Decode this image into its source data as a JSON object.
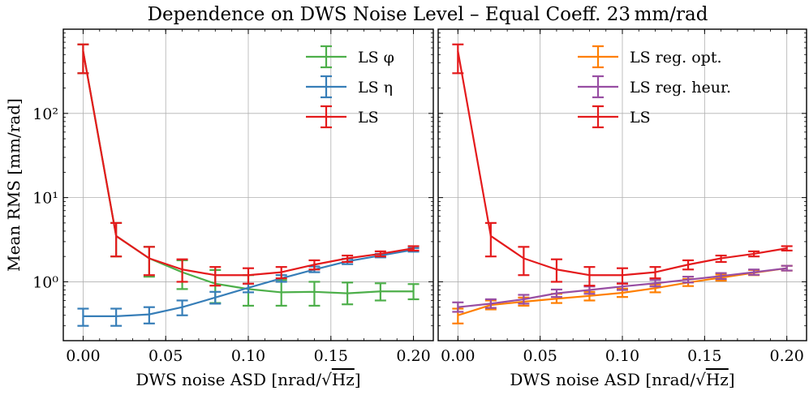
{
  "figure": {
    "title": "Dependence on DWS Noise Level – Equal Coeff. 23 mm/rad"
  },
  "chart_data": [
    {
      "type": "line",
      "ylabel": "Mean RMS [mm/rad]",
      "xlabel_prefix": "DWS noise ASD [nrad/",
      "xlabel_sqrt": "Hz",
      "xlabel_suffix": "]",
      "yscale": "log",
      "xlim": [
        -0.012,
        0.212
      ],
      "ylim": [
        0.2,
        1000
      ],
      "xticks": [
        0.0,
        0.05,
        0.1,
        0.15,
        0.2
      ],
      "xtick_labels": [
        "0.00",
        "0.05",
        "0.10",
        "0.15",
        "0.20"
      ],
      "yticks": [
        1,
        10,
        100
      ],
      "ytick_labels": [
        "10⁰",
        "10¹",
        "10²"
      ],
      "grid": true,
      "legend_position": "top-right",
      "series": [
        {
          "name": "LS φ",
          "color": "#4daf4a",
          "x": [
            0.0,
            0.02,
            0.04,
            0.06,
            0.08,
            0.1,
            0.12,
            0.14,
            0.16,
            0.18,
            0.2
          ],
          "y": [
            550,
            3.5,
            1.9,
            1.3,
            0.95,
            0.82,
            0.75,
            0.76,
            0.73,
            0.77,
            0.77
          ],
          "err_low": [
            300,
            2.0,
            1.15,
            0.82,
            0.56,
            0.52,
            0.52,
            0.52,
            0.54,
            0.6,
            0.62
          ],
          "err_high": [
            660,
            5.0,
            2.6,
            1.8,
            1.38,
            1.2,
            1.05,
            1.0,
            0.98,
            0.96,
            0.94
          ]
        },
        {
          "name": "LS η",
          "color": "#377eb8",
          "x": [
            0.0,
            0.02,
            0.04,
            0.06,
            0.08,
            0.1,
            0.12,
            0.14,
            0.16,
            0.18,
            0.2
          ],
          "y": [
            0.39,
            0.39,
            0.41,
            0.5,
            0.65,
            0.85,
            1.1,
            1.4,
            1.75,
            2.05,
            2.4
          ],
          "err_low": [
            0.3,
            0.3,
            0.32,
            0.4,
            0.55,
            0.75,
            1.0,
            1.3,
            1.62,
            1.95,
            2.28
          ],
          "err_high": [
            0.48,
            0.48,
            0.5,
            0.6,
            0.76,
            0.95,
            1.2,
            1.52,
            1.88,
            2.15,
            2.52
          ]
        },
        {
          "name": "LS",
          "color": "#e41a1c",
          "x": [
            0.0,
            0.02,
            0.04,
            0.06,
            0.08,
            0.1,
            0.12,
            0.14,
            0.16,
            0.18,
            0.2
          ],
          "y": [
            550,
            3.5,
            1.9,
            1.4,
            1.2,
            1.2,
            1.3,
            1.6,
            1.9,
            2.15,
            2.5
          ],
          "err_low": [
            300,
            2.0,
            1.2,
            1.0,
            0.9,
            0.95,
            1.1,
            1.4,
            1.72,
            2.0,
            2.35
          ],
          "err_high": [
            660,
            5.0,
            2.6,
            1.85,
            1.5,
            1.45,
            1.5,
            1.8,
            2.05,
            2.3,
            2.65
          ]
        }
      ]
    },
    {
      "type": "line",
      "xlabel_prefix": "DWS noise ASD [nrad/",
      "xlabel_sqrt": "Hz",
      "xlabel_suffix": "]",
      "yscale": "log",
      "xlim": [
        -0.012,
        0.212
      ],
      "ylim": [
        0.2,
        1000
      ],
      "xticks": [
        0.0,
        0.05,
        0.1,
        0.15,
        0.2
      ],
      "xtick_labels": [
        "0.00",
        "0.05",
        "0.10",
        "0.15",
        "0.20"
      ],
      "yticks": [
        1,
        10,
        100
      ],
      "grid": true,
      "legend_position": "top-right",
      "series": [
        {
          "name": "LS reg. opt.",
          "color": "#ff7f00",
          "x": [
            0.0,
            0.02,
            0.04,
            0.06,
            0.08,
            0.1,
            0.12,
            0.14,
            0.16,
            0.18,
            0.2
          ],
          "y": [
            0.4,
            0.53,
            0.58,
            0.63,
            0.68,
            0.74,
            0.84,
            0.98,
            1.12,
            1.28,
            1.45
          ],
          "err_low": [
            0.32,
            0.47,
            0.52,
            0.56,
            0.6,
            0.66,
            0.75,
            0.89,
            1.03,
            1.2,
            1.36
          ],
          "err_high": [
            0.48,
            0.6,
            0.65,
            0.72,
            0.76,
            0.83,
            0.93,
            1.08,
            1.22,
            1.38,
            1.55
          ]
        },
        {
          "name": "LS reg. heur.",
          "color": "#984ea3",
          "x": [
            0.0,
            0.02,
            0.04,
            0.06,
            0.08,
            0.1,
            0.12,
            0.14,
            0.16,
            0.18,
            0.2
          ],
          "y": [
            0.5,
            0.55,
            0.62,
            0.73,
            0.8,
            0.88,
            0.96,
            1.06,
            1.17,
            1.3,
            1.45
          ],
          "err_low": [
            0.44,
            0.49,
            0.55,
            0.66,
            0.72,
            0.8,
            0.88,
            0.98,
            1.08,
            1.21,
            1.36
          ],
          "err_high": [
            0.57,
            0.62,
            0.7,
            0.81,
            0.88,
            0.96,
            1.05,
            1.15,
            1.27,
            1.4,
            1.55
          ]
        },
        {
          "name": "LS",
          "color": "#e41a1c",
          "x": [
            0.0,
            0.02,
            0.04,
            0.06,
            0.08,
            0.1,
            0.12,
            0.14,
            0.16,
            0.18,
            0.2
          ],
          "y": [
            550,
            3.5,
            1.9,
            1.4,
            1.2,
            1.2,
            1.3,
            1.6,
            1.9,
            2.15,
            2.5
          ],
          "err_low": [
            300,
            2.0,
            1.2,
            1.0,
            0.9,
            0.95,
            1.1,
            1.4,
            1.72,
            2.0,
            2.35
          ],
          "err_high": [
            660,
            5.0,
            2.6,
            1.85,
            1.5,
            1.45,
            1.5,
            1.8,
            2.05,
            2.3,
            2.65
          ]
        }
      ]
    }
  ]
}
